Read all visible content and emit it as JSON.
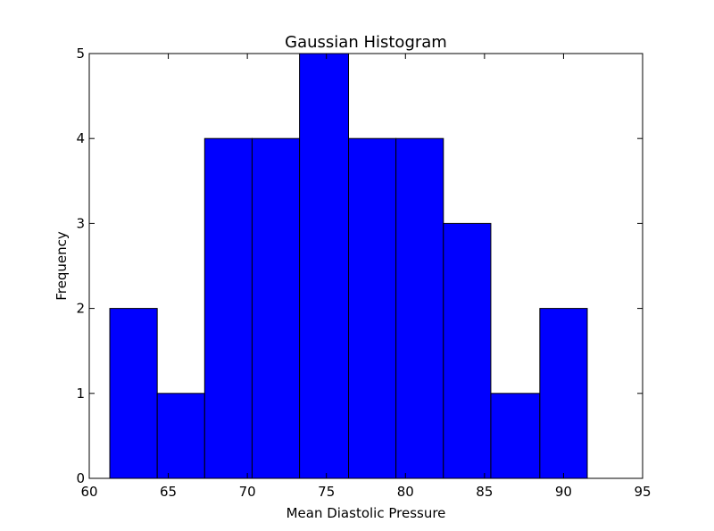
{
  "chart_data": {
    "type": "bar",
    "title": "Gaussian Histogram",
    "xlabel": "Mean Diastolic Pressure",
    "ylabel": "Frequency",
    "xlim": [
      60,
      95
    ],
    "ylim": [
      0,
      5
    ],
    "xticks": [
      60,
      65,
      70,
      75,
      80,
      85,
      90,
      95
    ],
    "yticks": [
      0,
      1,
      2,
      3,
      4,
      5
    ],
    "bar_color": "#0000ff",
    "edge_color": "#000000",
    "grid": false,
    "bins": [
      {
        "start": 61.3,
        "end": 64.3,
        "count": 2
      },
      {
        "start": 64.3,
        "end": 67.3,
        "count": 1
      },
      {
        "start": 67.3,
        "end": 70.3,
        "count": 4
      },
      {
        "start": 70.3,
        "end": 73.3,
        "count": 4
      },
      {
        "start": 73.3,
        "end": 76.4,
        "count": 5
      },
      {
        "start": 76.4,
        "end": 79.4,
        "count": 4
      },
      {
        "start": 79.4,
        "end": 82.4,
        "count": 4
      },
      {
        "start": 82.4,
        "end": 85.4,
        "count": 3
      },
      {
        "start": 85.4,
        "end": 88.5,
        "count": 1
      },
      {
        "start": 88.5,
        "end": 91.5,
        "count": 2
      }
    ]
  }
}
